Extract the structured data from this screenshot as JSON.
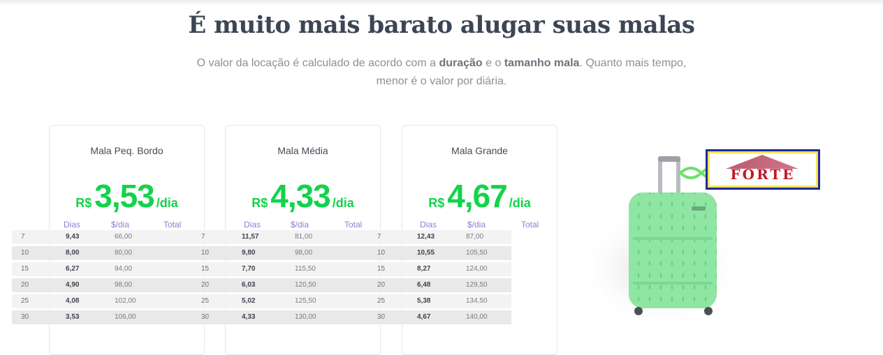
{
  "header": {
    "title": "É muito mais barato alugar suas malas",
    "subtitle_parts": [
      "O valor da locação é calculado de acordo com a ",
      "duração",
      " e o ",
      "tamanho mala",
      ". Quanto mais tempo,"
    ],
    "subtitle_line2": "menor é o valor por diária."
  },
  "table_headers": {
    "days": "Dias",
    "rate": "$/dia",
    "total": "Total"
  },
  "cards": [
    {
      "name": "Mala Peq. Bordo",
      "currency": "R$",
      "price": "3,53",
      "per": "/dia",
      "rows": [
        {
          "days": "7",
          "rate": "9,43",
          "total": "66,00"
        },
        {
          "days": "10",
          "rate": "8,00",
          "total": "80,00"
        },
        {
          "days": "15",
          "rate": "6,27",
          "total": "94,00"
        },
        {
          "days": "20",
          "rate": "4,90",
          "total": "98,00"
        },
        {
          "days": "25",
          "rate": "4,08",
          "total": "102,00"
        },
        {
          "days": "30",
          "rate": "3,53",
          "total": "106,00"
        }
      ]
    },
    {
      "name": "Mala Média",
      "currency": "R$",
      "price": "4,33",
      "per": "/dia",
      "rows": [
        {
          "days": "7",
          "rate": "11,57",
          "total": "81,00"
        },
        {
          "days": "10",
          "rate": "9,80",
          "total": "98,00"
        },
        {
          "days": "15",
          "rate": "7,70",
          "total": "115,50"
        },
        {
          "days": "20",
          "rate": "6,03",
          "total": "120,50"
        },
        {
          "days": "25",
          "rate": "5,02",
          "total": "125,50"
        },
        {
          "days": "30",
          "rate": "4,33",
          "total": "130,00"
        }
      ]
    },
    {
      "name": "Mala Grande",
      "currency": "R$",
      "price": "4,67",
      "per": "/dia",
      "rows": [
        {
          "days": "7",
          "rate": "12,43",
          "total": "87,00"
        },
        {
          "days": "10",
          "rate": "10,55",
          "total": "105,50"
        },
        {
          "days": "15",
          "rate": "8,27",
          "total": "124,00"
        },
        {
          "days": "20",
          "rate": "6,48",
          "total": "129,50"
        },
        {
          "days": "25",
          "rate": "5,38",
          "total": "134,50"
        },
        {
          "days": "30",
          "rate": "4,67",
          "total": "140,00"
        }
      ]
    }
  ],
  "image": {
    "tag_text": "FORTE",
    "suitcase_color": "#8fe6a2",
    "accent_green": "#12d34a"
  }
}
